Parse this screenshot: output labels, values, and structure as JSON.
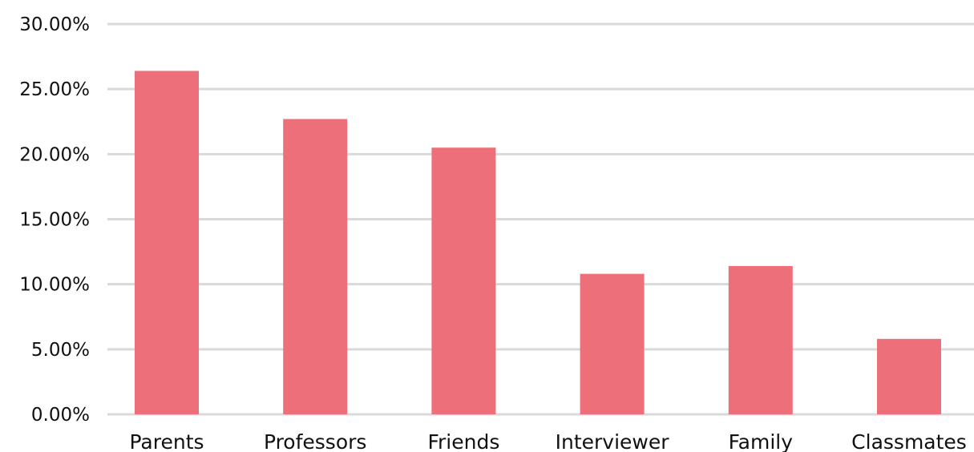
{
  "chart_data": {
    "type": "bar",
    "title": "",
    "xlabel": "",
    "ylabel": "",
    "categories": [
      "Parents",
      "Professors",
      "Friends",
      "Interviewer",
      "Family",
      "Classmates"
    ],
    "values": [
      0.264,
      0.227,
      0.205,
      0.108,
      0.114,
      0.058
    ],
    "ylim": [
      0,
      0.3
    ],
    "yticks": [
      0,
      0.05,
      0.1,
      0.15,
      0.2,
      0.25,
      0.3
    ],
    "ytick_labels": [
      "0.00%",
      "5.00%",
      "10.00%",
      "15.00%",
      "20.00%",
      "25.00%",
      "30.00%"
    ],
    "grid": true,
    "legend": "none",
    "bar_color": "#ec6f79",
    "grid_color": "#d9d9d9"
  }
}
